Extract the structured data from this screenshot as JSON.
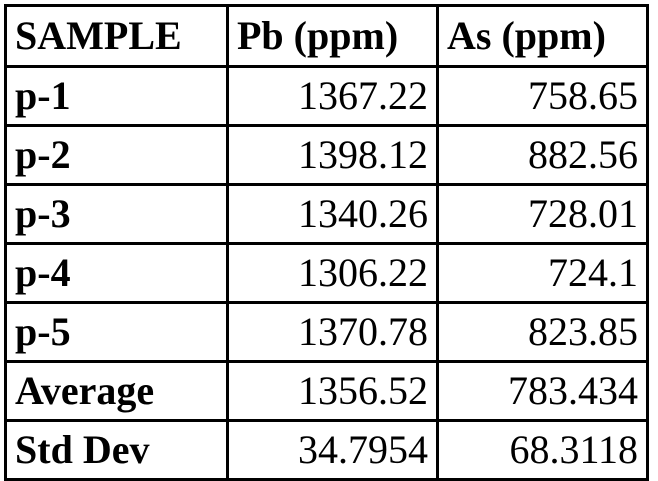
{
  "table": {
    "headers": [
      "SAMPLE",
      "Pb (ppm)",
      "As (ppm)"
    ],
    "rows": [
      [
        "p-1",
        "1367.22",
        "758.65"
      ],
      [
        "p-2",
        "1398.12",
        "882.56"
      ],
      [
        "p-3",
        "1340.26",
        "728.01"
      ],
      [
        "p-4",
        "1306.22",
        "724.1"
      ],
      [
        "p-5",
        "1370.78",
        "823.85"
      ],
      [
        "Average",
        "1356.52",
        "783.434"
      ],
      [
        "Std Dev",
        "34.7954",
        "68.3118"
      ]
    ]
  }
}
